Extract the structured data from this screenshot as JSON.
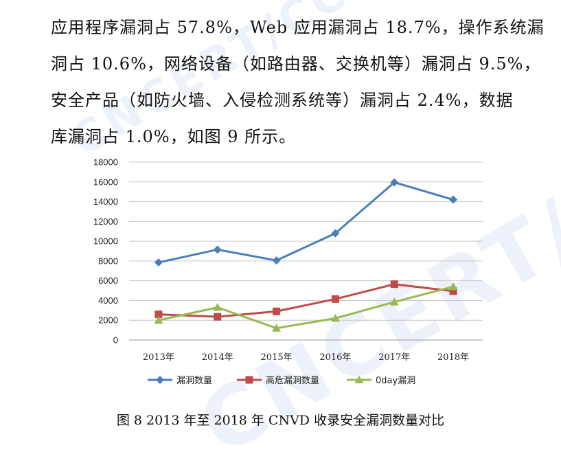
{
  "paragraph_lines": [
    "应用程序漏洞占 57.8%，Web 应用漏洞占 18.7%，操作系统漏",
    "洞占 10.6%，网络设备（如路由器、交换机等）漏洞占 9.5%，",
    "安全产品（如防火墙、入侵检测系统等）漏洞占 2.4%，数据",
    "库漏洞占 1.0%，如图 9 所示。"
  ],
  "caption": "图 8  2013 年至 2018 年 CNVD 收录安全漏洞数量对比",
  "watermark": "CNCERT/CC",
  "chart_data": {
    "type": "line",
    "categories": [
      "2013年",
      "2014年",
      "2015年",
      "2016年",
      "2017年",
      "2018年"
    ],
    "ylim": [
      0,
      18000
    ],
    "yticks": [
      0,
      2000,
      4000,
      6000,
      8000,
      10000,
      12000,
      14000,
      16000,
      18000
    ],
    "grid": true,
    "legend_position": "bottom",
    "series": [
      {
        "name": "漏洞数量",
        "values": [
          7850,
          9150,
          8050,
          10800,
          15950,
          14200
        ],
        "color": "#4A7EBB",
        "marker": "diamond"
      },
      {
        "name": "高危漏洞数量",
        "values": [
          2600,
          2350,
          2900,
          4150,
          5650,
          4950
        ],
        "color": "#BE4B48",
        "marker": "square"
      },
      {
        "name": "0day漏洞",
        "values": [
          2000,
          3300,
          1200,
          2200,
          3850,
          5400
        ],
        "color": "#98B954",
        "marker": "triangle"
      }
    ]
  }
}
